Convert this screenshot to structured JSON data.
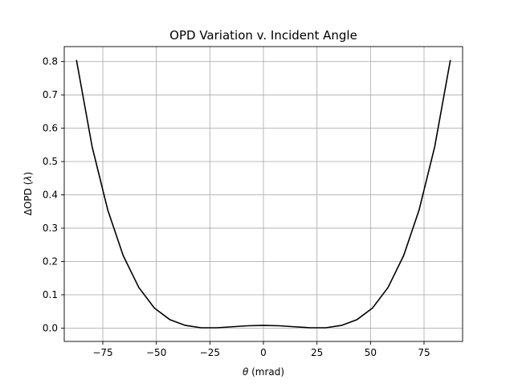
{
  "chart_data": {
    "type": "line",
    "title": "OPD Variation v. Incident Angle",
    "xlabel_symbol": "θ",
    "xlabel_unit": " (mrad)",
    "ylabel_prefix": "ΔOPD (",
    "ylabel_symbol": "λ",
    "ylabel_suffix": ")",
    "xlim": [
      -93,
      93
    ],
    "ylim": [
      -0.04,
      0.845
    ],
    "x_ticks": [
      -75,
      -50,
      -25,
      0,
      25,
      50,
      75
    ],
    "x_tick_labels": [
      "−75",
      "−50",
      "−25",
      "0",
      "25",
      "50",
      "75"
    ],
    "y_ticks": [
      0.0,
      0.1,
      0.2,
      0.3,
      0.4,
      0.5,
      0.6,
      0.7,
      0.8
    ],
    "y_tick_labels": [
      "0.0",
      "0.1",
      "0.2",
      "0.3",
      "0.4",
      "0.5",
      "0.6",
      "0.7",
      "0.8"
    ],
    "grid": true,
    "line_color": "#000000",
    "series": [
      {
        "x": [
          -87.3,
          -80.0,
          -72.7,
          -65.5,
          -58.2,
          -50.9,
          -43.6,
          -36.4,
          -29.1,
          -21.8,
          -14.5,
          -7.3,
          0.0,
          7.3,
          14.5,
          21.8,
          29.1,
          36.4,
          43.6,
          50.9,
          58.2,
          65.5,
          72.7,
          80.0,
          87.3
        ],
        "y": [
          0.805,
          0.545,
          0.355,
          0.218,
          0.122,
          0.06,
          0.025,
          0.008,
          0.001,
          0.001,
          0.004,
          0.007,
          0.008,
          0.007,
          0.004,
          0.001,
          0.001,
          0.008,
          0.025,
          0.06,
          0.122,
          0.218,
          0.355,
          0.545,
          0.805
        ]
      }
    ]
  }
}
